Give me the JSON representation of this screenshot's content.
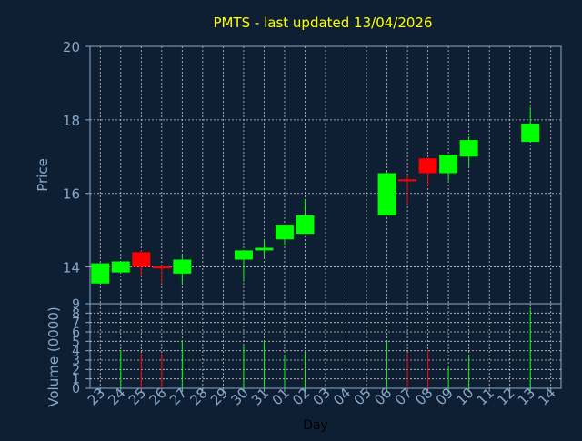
{
  "chart_data": [
    {
      "type": "candlestick",
      "title": "PMTS - last updated 13/04/2026",
      "ylabel": "Price",
      "ylim": [
        13,
        20
      ],
      "yticks": [
        14,
        16,
        18,
        20
      ],
      "grid": true,
      "categories": [
        "23",
        "24",
        "25",
        "26",
        "27",
        "28",
        "29",
        "30",
        "31",
        "01",
        "02",
        "03",
        "04",
        "05",
        "06",
        "07",
        "08",
        "09",
        "10",
        "11",
        "12",
        "13",
        "14"
      ],
      "candles": [
        {
          "day": "23",
          "open": 13.55,
          "close": 14.1,
          "high": 14.1,
          "low": 13.55
        },
        {
          "day": "24",
          "open": 13.85,
          "close": 14.15,
          "high": 14.15,
          "low": 13.85
        },
        {
          "day": "25",
          "open": 14.4,
          "close": 14.0,
          "high": 14.45,
          "low": 13.75
        },
        {
          "day": "26",
          "open": 14.02,
          "close": 13.96,
          "high": 14.05,
          "low": 13.55
        },
        {
          "day": "27",
          "open": 13.82,
          "close": 14.2,
          "high": 14.35,
          "low": 13.55
        },
        {
          "day": "30",
          "open": 14.2,
          "close": 14.45,
          "high": 14.45,
          "low": 13.6
        },
        {
          "day": "31",
          "open": 14.45,
          "close": 14.52,
          "high": 14.75,
          "low": 14.25
        },
        {
          "day": "01",
          "open": 14.75,
          "close": 15.15,
          "high": 15.15,
          "low": 14.6
        },
        {
          "day": "02",
          "open": 14.9,
          "close": 15.4,
          "high": 15.85,
          "low": 14.9
        },
        {
          "day": "06",
          "open": 15.4,
          "close": 16.55,
          "high": 16.6,
          "low": 15.4
        },
        {
          "day": "07",
          "open": 16.38,
          "close": 16.33,
          "high": 16.5,
          "low": 15.7
        },
        {
          "day": "08",
          "open": 16.95,
          "close": 16.55,
          "high": 17.0,
          "low": 16.2
        },
        {
          "day": "09",
          "open": 16.55,
          "close": 17.05,
          "high": 17.05,
          "low": 16.35
        },
        {
          "day": "10",
          "open": 17.0,
          "close": 17.45,
          "high": 17.55,
          "low": 16.7
        },
        {
          "day": "13",
          "open": 17.4,
          "close": 17.9,
          "high": 18.35,
          "low": 17.4
        }
      ]
    },
    {
      "type": "bar",
      "ylabel": "Volume (0000)",
      "xlabel": "Day",
      "ylim": [
        0,
        9
      ],
      "yticks": [
        0,
        1,
        2,
        3,
        4,
        5,
        6,
        7,
        8,
        9
      ],
      "categories": [
        "23",
        "24",
        "25",
        "26",
        "27",
        "28",
        "29",
        "30",
        "31",
        "01",
        "02",
        "03",
        "04",
        "05",
        "06",
        "07",
        "08",
        "09",
        "10",
        "11",
        "12",
        "13",
        "14"
      ],
      "values": [
        0,
        4.0,
        3.7,
        3.7,
        5.1,
        0,
        0,
        4.5,
        5.1,
        3.6,
        3.9,
        0,
        0,
        0,
        5.0,
        3.8,
        4.0,
        2.3,
        3.6,
        0,
        0,
        8.4,
        0
      ],
      "up": [
        true,
        true,
        false,
        false,
        true,
        true,
        true,
        true,
        true,
        true,
        true,
        true,
        true,
        true,
        true,
        false,
        false,
        true,
        true,
        true,
        true,
        true,
        true
      ]
    }
  ],
  "colors": {
    "background": "#0f1f33",
    "up": "#00ff00",
    "down": "#ff0000",
    "title": "#ffff00",
    "axis_text": "#88a8c8",
    "grid": "#c8c8c8",
    "frame": "#88a8c8"
  }
}
